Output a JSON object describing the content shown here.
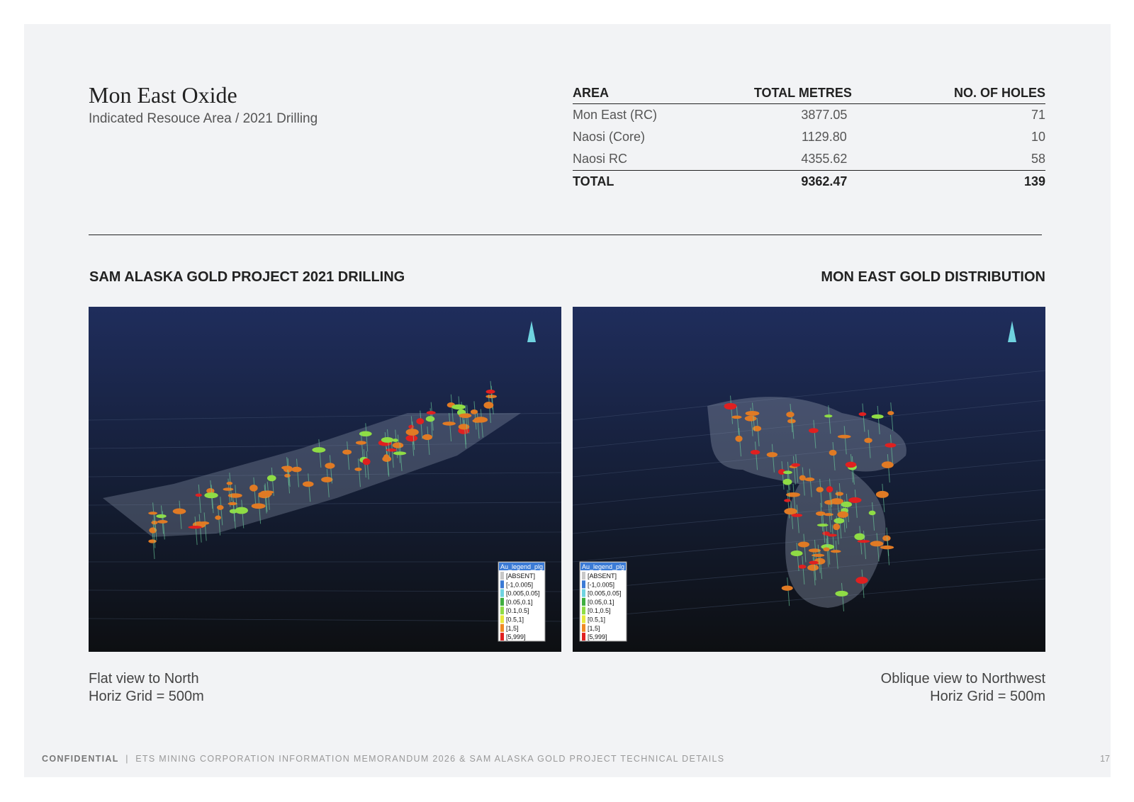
{
  "header": {
    "title": "Mon East Oxide",
    "subtitle": "Indicated Resouce Area / 2021 Drilling"
  },
  "table": {
    "columns": [
      "AREA",
      "TOTAL METRES",
      "NO. OF HOLES"
    ],
    "rows": [
      [
        "Mon East (RC)",
        "3877.05",
        "71"
      ],
      [
        "Naosi (Core)",
        "1129.80",
        "10"
      ],
      [
        "Naosi RC",
        "4355.62",
        "58"
      ]
    ],
    "total": [
      "TOTAL",
      "9362.47",
      "139"
    ]
  },
  "sections": [
    {
      "heading": "SAM ALASKA GOLD PROJECT 2021 DRILLING",
      "legend": {
        "title": "Au_legend_plg",
        "items": [
          "[ABSENT]",
          "[-1,0.005]",
          "[0.005,0.05]",
          "[0.05,0.1]",
          "[0.1,0.5]",
          "[0.5,1]",
          "[1,5]",
          "[5,999]"
        ]
      },
      "caption": [
        "Flat view to North",
        "Horiz Grid = 500m"
      ]
    },
    {
      "heading": "MON EAST GOLD DISTRIBUTION",
      "legend": {
        "title": "Au_legend_plg",
        "items": [
          "[ABSENT]",
          "[-1,0.005]",
          "[0.005,0.05]",
          "[0.05,0.1]",
          "[0.1,0.5]",
          "[0.5,1]",
          "[1,5]",
          "[5,999]"
        ]
      },
      "caption": [
        "Oblique view to Northwest",
        "Horiz Grid = 500m"
      ]
    }
  ],
  "footer": {
    "label": "CONFIDENTIAL",
    "text": "ETS MINING CORPORATION INFORMATION MEMORANDUM 2026 & SAM ALASKA GOLD PROJECT TECHNICAL DETAILS",
    "page": "17"
  }
}
